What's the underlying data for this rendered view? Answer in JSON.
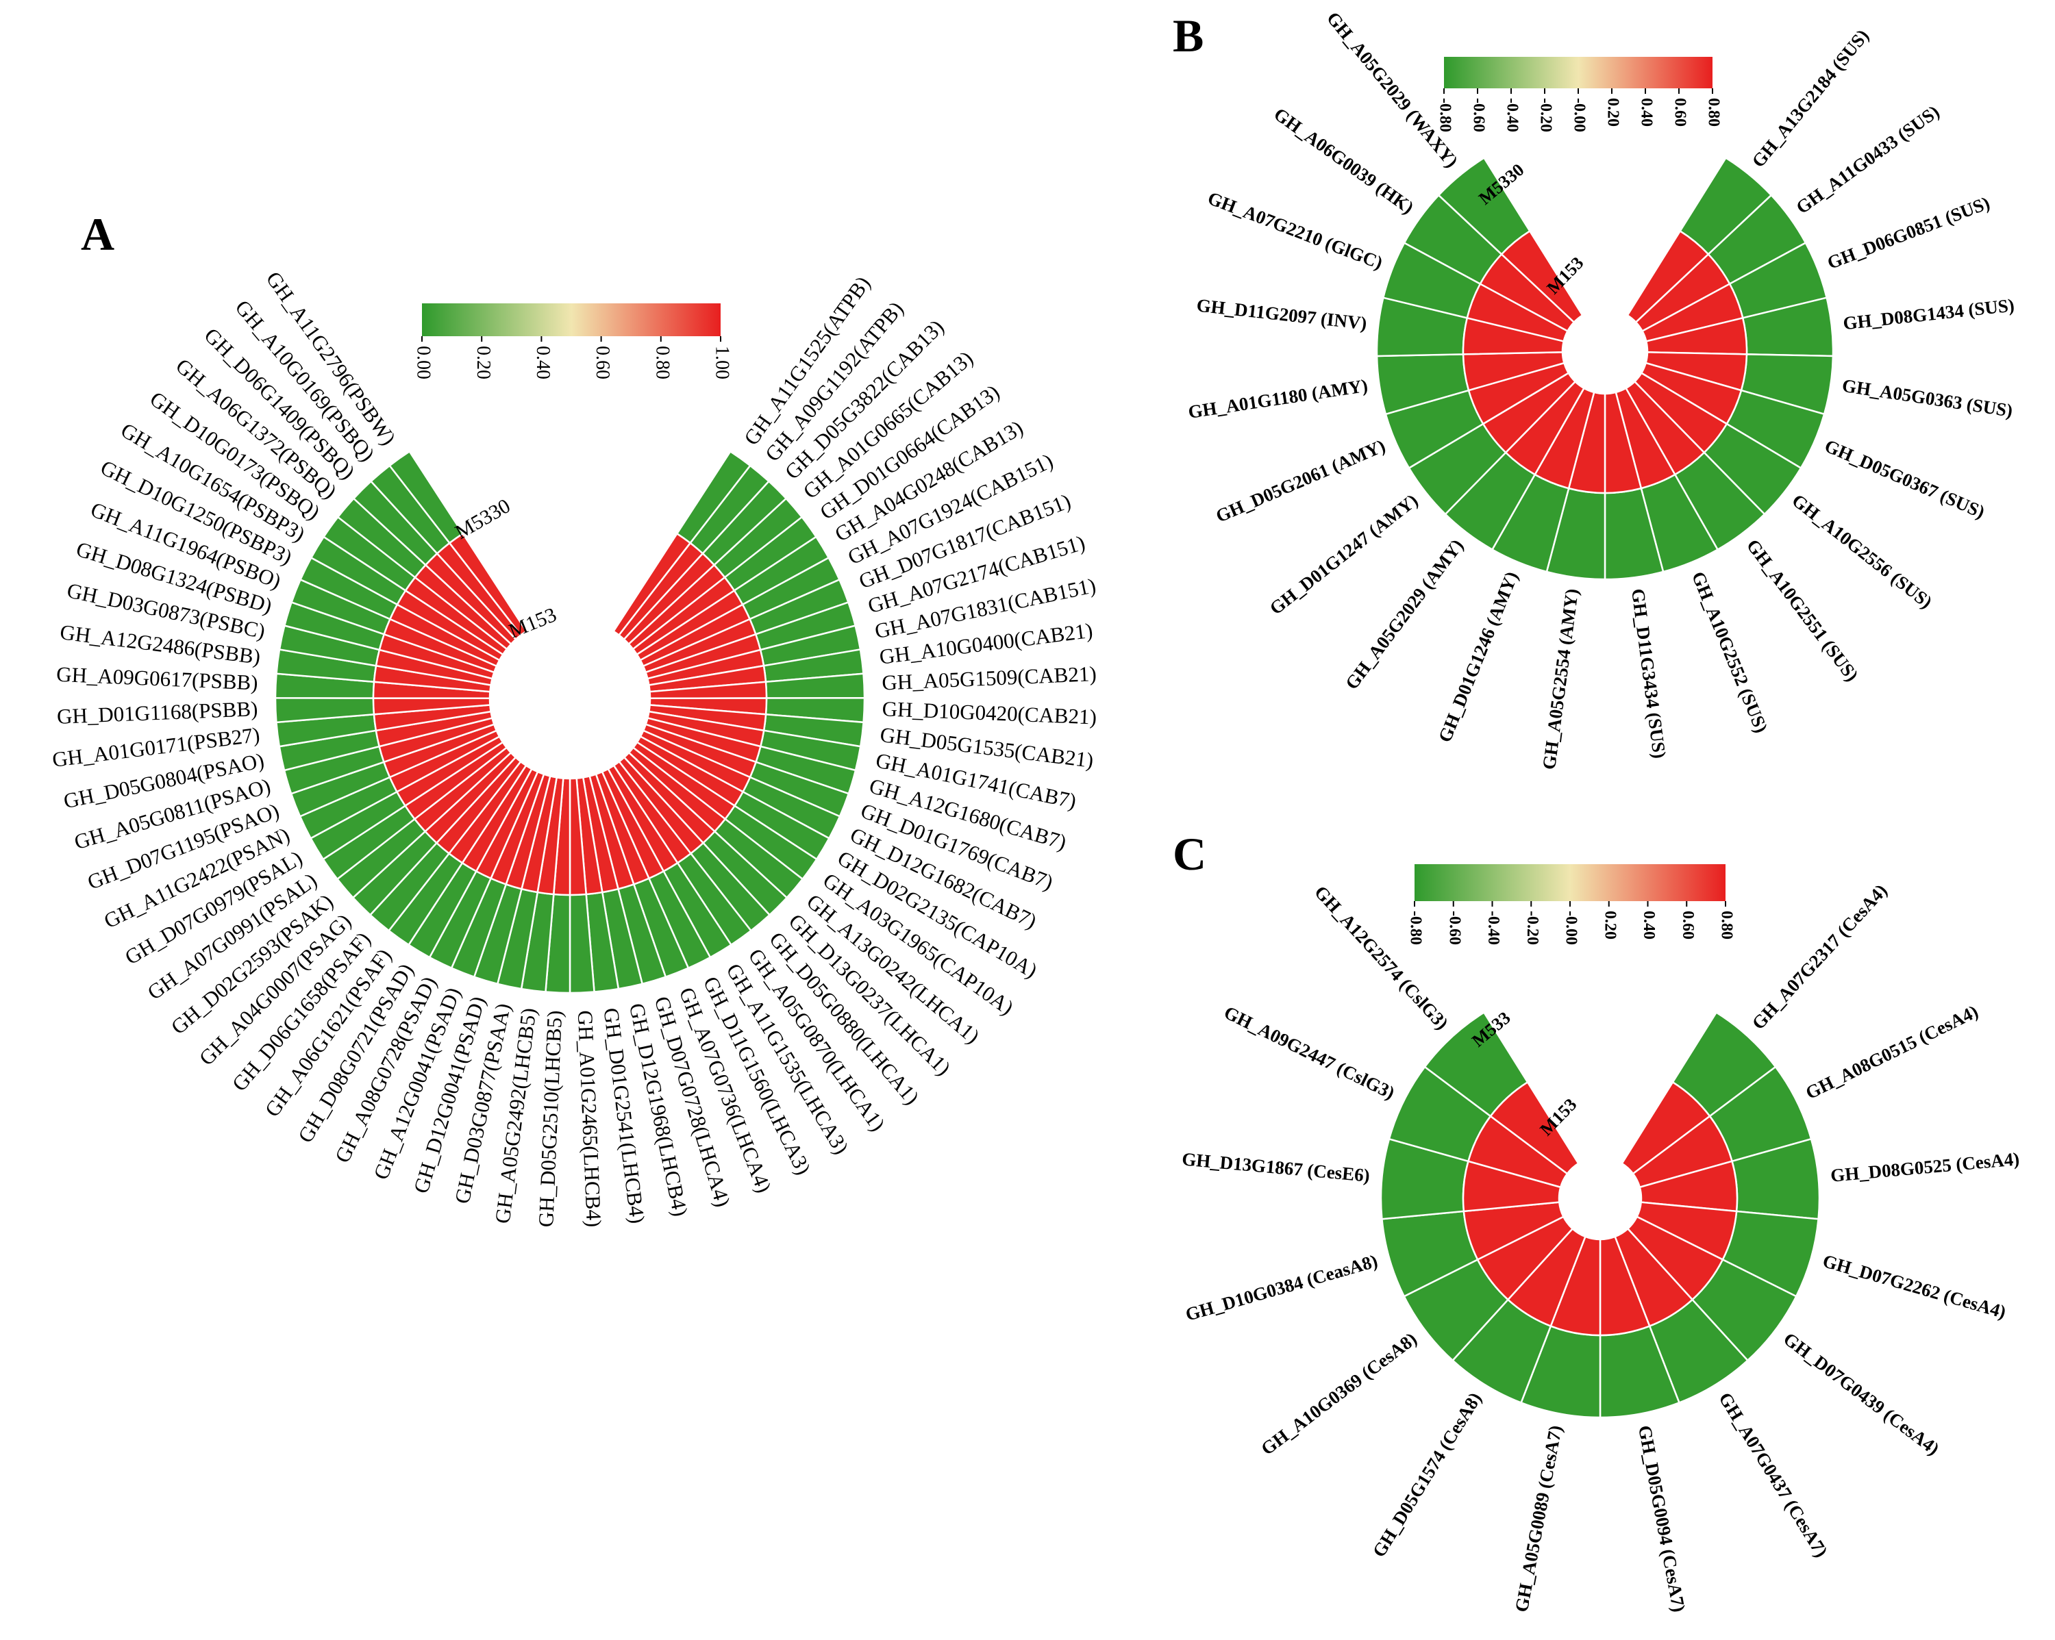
{
  "chart_data": [
    {
      "type": "heatmap",
      "panel": "A",
      "rings": [
        "M5330",
        "M153"
      ],
      "colorbar": {
        "ticks": [
          "0.00",
          "0.20",
          "0.40",
          "0.60",
          "0.80",
          "1.00"
        ],
        "range": [
          0,
          1
        ],
        "colors": [
          "#2f9a2c",
          "#f1e6b0",
          "#e81f1f"
        ]
      },
      "genes": [
        "GH_A11G1525(ATPB)",
        "GH_A09G1192(ATPB)",
        "GH_D05G3822(CAB13)",
        "GH_A01G0665(CAB13)",
        "GH_D01G0664(CAB13)",
        "GH_A04G0248(CAB13)",
        "GH_A07G1924(CAB151)",
        "GH_D07G1817(CAB151)",
        "GH_A07G2174(CAB151)",
        "GH_A07G1831(CAB151)",
        "GH_A10G0400(CAB21)",
        "GH_A05G1509(CAB21)",
        "GH_D10G0420(CAB21)",
        "GH_D05G1535(CAB21)",
        "GH_A01G1741(CAB7)",
        "GH_A12G1680(CAB7)",
        "GH_D01G1769(CAB7)",
        "GH_D12G1682(CAB7)",
        "GH_D02G2135(CAP10A)",
        "GH_A03G1965(CAP10A)",
        "GH_A13G0242(LHCA1)",
        "GH_D13G0237(LHCA1)",
        "GH_D05G0880(LHCA1)",
        "GH_A05G0870(LHCA1)",
        "GH_A11G1535(LHCA3)",
        "GH_D11G1560(LHCA3)",
        "GH_A07G0736(LHCA4)",
        "GH_D07G0728(LHCA4)",
        "GH_D12G1968(LHCB4)",
        "GH_D01G2541(LHCB4)",
        "GH_A01G2465(LHCB4)",
        "GH_D05G2510(LHCB5)",
        "GH_A05G2492(LHCB5)",
        "GH_D03G0877(PSAA)",
        "GH_D12G0041(PSAD)",
        "GH_A12G0041(PSAD)",
        "GH_A08G0728(PSAD)",
        "GH_D08G0721(PSAD)",
        "GH_A06G1621(PSAF)",
        "GH_D06G1658(PSAF)",
        "GH_A04G0007(PSAG)",
        "GH_D02G2593(PSAK)",
        "GH_A07G0991(PSAL)",
        "GH_D07G0979(PSAL)",
        "GH_A11G2422(PSAN)",
        "GH_D07G1195(PSAO)",
        "GH_A05G0811(PSAO)",
        "GH_D05G0804(PSAO)",
        "GH_A01G0171(PSB27)",
        "GH_D01G1168(PSBB)",
        "GH_A09G0617(PSBB)",
        "GH_A12G2486(PSBB)",
        "GH_D03G0873(PSBC)",
        "GH_D08G1324(PSBD)",
        "GH_A11G1964(PSBO)",
        "GH_D10G1250(PSBP3)",
        "GH_A10G1654(PSBP3)",
        "GH_D10G0173(PSBQ)",
        "GH_A06G1372(PSBQ)",
        "GH_D06G1409(PSBQ)",
        "GH_A10G0169(PSBQ)",
        "GH_A11G2796(PSBW)"
      ],
      "values": {
        "M5330": [
          0.02,
          0.02,
          0.02,
          0.02,
          0.02,
          0.02,
          0.02,
          0.02,
          0.02,
          0.02,
          0.02,
          0.02,
          0.02,
          0.02,
          0.02,
          0.02,
          0.02,
          0.02,
          0.02,
          0.02,
          0.02,
          0.02,
          0.02,
          0.02,
          0.02,
          0.02,
          0.02,
          0.02,
          0.02,
          0.02,
          0.02,
          0.02,
          0.02,
          0.02,
          0.02,
          0.02,
          0.02,
          0.02,
          0.02,
          0.02,
          0.02,
          0.02,
          0.02,
          0.02,
          0.02,
          0.02,
          0.02,
          0.02,
          0.02,
          0.02,
          0.02,
          0.02,
          0.02,
          0.02,
          0.02,
          0.02,
          0.02,
          0.02,
          0.02,
          0.02,
          0.02,
          0.02
        ],
        "M153": [
          0.98,
          0.98,
          0.98,
          0.98,
          0.98,
          0.98,
          0.98,
          0.98,
          0.98,
          0.98,
          0.98,
          0.98,
          0.98,
          0.98,
          0.98,
          0.98,
          0.98,
          0.98,
          0.98,
          0.98,
          0.98,
          0.98,
          0.98,
          0.98,
          0.98,
          0.98,
          0.98,
          0.98,
          0.98,
          0.98,
          0.98,
          0.98,
          0.98,
          0.98,
          0.98,
          0.98,
          0.98,
          0.98,
          0.98,
          0.98,
          0.98,
          0.98,
          0.98,
          0.98,
          0.98,
          0.98,
          0.98,
          0.98,
          0.98,
          0.98,
          0.98,
          0.98,
          0.98,
          0.98,
          0.98,
          0.98,
          0.98,
          0.98,
          0.98,
          0.98,
          0.98,
          0.98
        ]
      }
    },
    {
      "type": "heatmap",
      "panel": "B",
      "rings": [
        "M5330",
        "M153"
      ],
      "colorbar": {
        "ticks": [
          "-0.80",
          "-0.60",
          "-0.40",
          "-0.20",
          "-0.00",
          "0.20",
          "0.40",
          "0.60",
          "0.80"
        ],
        "range": [
          -0.8,
          0.8
        ],
        "colors": [
          "#2f9a2c",
          "#f1e6b0",
          "#e81f1f"
        ]
      },
      "genes": [
        "GH_A13G2184 (SUS)",
        "GH_A11G0433 (SUS)",
        "GH_D06G0851 (SUS)",
        "GH_D08G1434 (SUS)",
        "GH_A05G0363 (SUS)",
        "GH_D05G0367 (SUS)",
        "GH_A10G2556 (SUS)",
        "GH_A10G2551 (SUS)",
        "GH_A10G2552 (SUS)",
        "GH_D11G3434 (SUS)",
        "GH_A05G2554 (AMY)",
        "GH_D01G1246 (AMY)",
        "GH_A05G2029 (AMY)",
        "GH_D01G1247 (AMY)",
        "GH_D05G2061 (AMY)",
        "GH_A01G1180 (AMY)",
        "GH_D11G2097 (INV)",
        "GH_A07G2210 (GlGC)",
        "GH_A06G0039 (HK)",
        "GH_A05G2029 (WAXY)"
      ],
      "values": {
        "M5330": [
          -0.78,
          -0.78,
          -0.78,
          -0.78,
          -0.78,
          -0.78,
          -0.78,
          -0.78,
          -0.78,
          -0.78,
          -0.78,
          -0.78,
          -0.78,
          -0.78,
          -0.78,
          -0.78,
          -0.78,
          -0.78,
          -0.78,
          -0.78
        ],
        "M153": [
          0.78,
          0.78,
          0.78,
          0.78,
          0.78,
          0.78,
          0.78,
          0.78,
          0.78,
          0.78,
          0.78,
          0.78,
          0.78,
          0.78,
          0.78,
          0.78,
          0.78,
          0.78,
          0.78,
          0.78
        ]
      }
    },
    {
      "type": "heatmap",
      "panel": "C",
      "rings": [
        "M533",
        "M153"
      ],
      "colorbar": {
        "ticks": [
          "-0.80",
          "-0.60",
          "-0.40",
          "-0.20",
          "-0.00",
          "0.20",
          "0.40",
          "0.60",
          "0.80"
        ],
        "range": [
          -0.8,
          0.8
        ],
        "colors": [
          "#2f9a2c",
          "#f1e6b0",
          "#e81f1f"
        ]
      },
      "genes": [
        "GH_A07G2317 (CesA4)",
        "GH_A08G0515 (CesA4)",
        "GH_D08G0525 (CesA4)",
        "GH_D07G2262 (CesA4)",
        "GH_D07G0439 (CesA4)",
        "GH_A07G0437 (CesA7)",
        "GH_D05G0094 (CesA7)",
        "GH_A05G0089 (CesA7)",
        "GH_D05G1574 (CesA8)",
        "GH_A10G0369 (CesA8)",
        "GH_D10G0384 (CeasA8)",
        "GH_D13G1867 (CesE6)",
        "GH_A09G2447 (CslG3)",
        "GH_A12G2574 (CslG3)"
      ],
      "values": {
        "M533": [
          -0.78,
          -0.78,
          -0.78,
          -0.78,
          -0.78,
          -0.78,
          -0.78,
          -0.78,
          -0.78,
          -0.78,
          -0.78,
          -0.78,
          -0.78,
          -0.78
        ],
        "M153": [
          0.78,
          0.78,
          0.78,
          0.78,
          0.78,
          0.78,
          0.78,
          0.78,
          0.78,
          0.78,
          0.78,
          0.78,
          0.78,
          0.78
        ]
      }
    }
  ]
}
